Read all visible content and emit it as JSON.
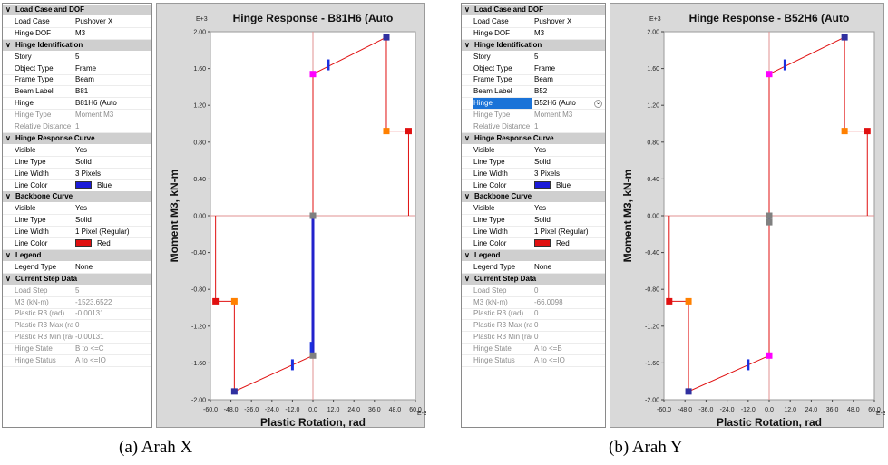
{
  "left_panel": {
    "properties": [
      {
        "type": "section",
        "label": "Load Case and DOF"
      },
      {
        "type": "item",
        "key": "Load Case",
        "value": "Pushover X"
      },
      {
        "type": "item",
        "key": "Hinge DOF",
        "value": "M3"
      },
      {
        "type": "section",
        "label": "Hinge Identification"
      },
      {
        "type": "item",
        "key": "Story",
        "value": "5"
      },
      {
        "type": "item",
        "key": "Object Type",
        "value": "Frame"
      },
      {
        "type": "item",
        "key": "Frame Type",
        "value": "Beam"
      },
      {
        "type": "item",
        "key": "Beam Label",
        "value": "B81"
      },
      {
        "type": "item",
        "key": "Hinge",
        "value": "B81H6 (Auto"
      },
      {
        "type": "item",
        "key": "Hinge Type",
        "value": "Moment M3",
        "grey": true
      },
      {
        "type": "item",
        "key": "Relative Distance",
        "value": "1",
        "grey": true
      },
      {
        "type": "section",
        "label": "Hinge Response Curve"
      },
      {
        "type": "item",
        "key": "Visible",
        "value": "Yes"
      },
      {
        "type": "item",
        "key": "Line Type",
        "value": "Solid"
      },
      {
        "type": "item",
        "key": "Line Width",
        "value": "3 Pixels"
      },
      {
        "type": "item",
        "key": "Line Color",
        "value": "Blue",
        "swatch": "#1b1bd8"
      },
      {
        "type": "section",
        "label": "Backbone Curve"
      },
      {
        "type": "item",
        "key": "Visible",
        "value": "Yes"
      },
      {
        "type": "item",
        "key": "Line Type",
        "value": "Solid"
      },
      {
        "type": "item",
        "key": "Line Width",
        "value": "1 Pixel (Regular)"
      },
      {
        "type": "item",
        "key": "Line Color",
        "value": "Red",
        "swatch": "#e01010"
      },
      {
        "type": "section",
        "label": "Legend"
      },
      {
        "type": "item",
        "key": "Legend Type",
        "value": "None"
      },
      {
        "type": "section",
        "label": "Current Step Data"
      },
      {
        "type": "item",
        "key": "Load Step",
        "value": "5",
        "grey": true
      },
      {
        "type": "item",
        "key": "M3 (kN-m)",
        "value": "-1523.6522",
        "grey": true
      },
      {
        "type": "item",
        "key": "Plastic R3 (rad)",
        "value": "-0.00131",
        "grey": true
      },
      {
        "type": "item",
        "key": "Plastic R3 Max (rac",
        "value": "0",
        "grey": true
      },
      {
        "type": "item",
        "key": "Plastic R3 Min (rad",
        "value": "-0.00131",
        "grey": true
      },
      {
        "type": "item",
        "key": "Hinge State",
        "value": "B to <=C",
        "grey": true
      },
      {
        "type": "item",
        "key": "Hinge Status",
        "value": "A to <=IO",
        "grey": true
      }
    ],
    "chart_title": "Hinge Response - B81H6 (Auto",
    "caption": "(a)  Arah X"
  },
  "right_panel": {
    "properties": [
      {
        "type": "section",
        "label": "Load Case and DOF"
      },
      {
        "type": "item",
        "key": "Load Case",
        "value": "Pushover X"
      },
      {
        "type": "item",
        "key": "Hinge DOF",
        "value": "M3"
      },
      {
        "type": "section",
        "label": "Hinge Identification"
      },
      {
        "type": "item",
        "key": "Story",
        "value": "5"
      },
      {
        "type": "item",
        "key": "Object Type",
        "value": "Frame"
      },
      {
        "type": "item",
        "key": "Frame Type",
        "value": "Beam"
      },
      {
        "type": "item",
        "key": "Beam Label",
        "value": "B52"
      },
      {
        "type": "item",
        "key": "Hinge",
        "value": "B52H6 (Auto",
        "selected": true,
        "dropdown": true
      },
      {
        "type": "item",
        "key": "Hinge Type",
        "value": "Moment M3",
        "grey": true
      },
      {
        "type": "item",
        "key": "Relative Distance",
        "value": "1",
        "grey": true
      },
      {
        "type": "section",
        "label": "Hinge Response Curve"
      },
      {
        "type": "item",
        "key": "Visible",
        "value": "Yes"
      },
      {
        "type": "item",
        "key": "Line Type",
        "value": "Solid"
      },
      {
        "type": "item",
        "key": "Line Width",
        "value": "3 Pixels"
      },
      {
        "type": "item",
        "key": "Line Color",
        "value": "Blue",
        "swatch": "#1b1bd8"
      },
      {
        "type": "section",
        "label": "Backbone Curve"
      },
      {
        "type": "item",
        "key": "Visible",
        "value": "Yes"
      },
      {
        "type": "item",
        "key": "Line Type",
        "value": "Solid"
      },
      {
        "type": "item",
        "key": "Line Width",
        "value": "1 Pixel (Regular)"
      },
      {
        "type": "item",
        "key": "Line Color",
        "value": "Red",
        "swatch": "#e01010"
      },
      {
        "type": "section",
        "label": "Legend"
      },
      {
        "type": "item",
        "key": "Legend Type",
        "value": "None"
      },
      {
        "type": "section",
        "label": "Current Step Data"
      },
      {
        "type": "item",
        "key": "Load Step",
        "value": "0",
        "grey": true
      },
      {
        "type": "item",
        "key": "M3 (kN-m)",
        "value": "-66.0098",
        "grey": true
      },
      {
        "type": "item",
        "key": "Plastic R3 (rad)",
        "value": "0",
        "grey": true
      },
      {
        "type": "item",
        "key": "Plastic R3 Max (rac",
        "value": "0",
        "grey": true
      },
      {
        "type": "item",
        "key": "Plastic R3 Min (rad",
        "value": "0",
        "grey": true
      },
      {
        "type": "item",
        "key": "Hinge State",
        "value": "A to <=B",
        "grey": true
      },
      {
        "type": "item",
        "key": "Hinge Status",
        "value": "A to <=IO",
        "grey": true
      }
    ],
    "chart_title": "Hinge Response - B52H6 (Auto",
    "caption": "(b) Arah Y"
  },
  "colors": {
    "backbone": "#e01010",
    "response": "#2222cc",
    "grid": "#e09090",
    "marker_B": "#ff00ff",
    "marker_C": "#3030a0",
    "marker_D": "#ff8000",
    "marker_E": "#e01010",
    "marker_origin": "#808080",
    "ticks_blue": "#1a30e0"
  },
  "chart_data": [
    {
      "type": "line",
      "title": "Hinge Response - B81H6 (Auto",
      "xlabel": "Plastic Rotation, rad",
      "ylabel": "Moment M3, kN-m",
      "x_multiplier": "E-3",
      "y_multiplier": "E+3",
      "xlim": [
        -60,
        60
      ],
      "ylim": [
        -2.0,
        2.0
      ],
      "x_ticks": [
        "-60.0",
        "-48.0",
        "-36.0",
        "-24.0",
        "-12.0",
        "0.0",
        "12.0",
        "24.0",
        "36.0",
        "48.0",
        "60.0"
      ],
      "y_ticks": [
        "2.00",
        "1.60",
        "1.20",
        "0.80",
        "0.40",
        "0.00",
        "-0.40",
        "-0.80",
        "-1.20",
        "-1.60",
        "-2.00"
      ],
      "series": [
        {
          "x": [
            -57,
            -57,
            -46,
            -46,
            0,
            0,
            0,
            43,
            43,
            56,
            56,
            56
          ],
          "y": [
            0,
            -0.93,
            -0.93,
            -1.91,
            -1.52,
            0,
            1.54,
            1.94,
            0.92,
            0.92,
            0.92,
            0
          ]
        }
      ],
      "response_x": [
        0,
        0
      ],
      "response_y": [
        0,
        -1.52
      ],
      "markers": [
        {
          "x": 0,
          "y": 0,
          "kind": "origin"
        },
        {
          "x": 0,
          "y": 1.54,
          "kind": "B"
        },
        {
          "x": 43,
          "y": 1.94,
          "kind": "C"
        },
        {
          "x": 43,
          "y": 0.92,
          "kind": "D"
        },
        {
          "x": 56,
          "y": 0.92,
          "kind": "E"
        },
        {
          "x": 0,
          "y": -1.52,
          "kind": "origin"
        },
        {
          "x": -46,
          "y": -1.91,
          "kind": "C"
        },
        {
          "x": -46,
          "y": -0.93,
          "kind": "D"
        },
        {
          "x": -57,
          "y": -0.93,
          "kind": "E"
        }
      ],
      "ticks": [
        {
          "x": 9,
          "y": 1.64
        },
        {
          "x": -12,
          "y": -1.62
        },
        {
          "x": -1,
          "y": -1.43
        }
      ]
    },
    {
      "type": "line",
      "title": "Hinge Response - B52H6 (Auto",
      "xlabel": "Plastic Rotation, rad",
      "ylabel": "Moment M3, kN-m",
      "x_multiplier": "E-3",
      "y_multiplier": "E+3",
      "xlim": [
        -60,
        60
      ],
      "ylim": [
        -2.0,
        2.0
      ],
      "x_ticks": [
        "-60.0",
        "-48.0",
        "-36.0",
        "-24.0",
        "-12.0",
        "0.0",
        "12.0",
        "24.0",
        "36.0",
        "48.0",
        "60.0"
      ],
      "y_ticks": [
        "2.00",
        "1.60",
        "1.20",
        "0.80",
        "0.40",
        "0.00",
        "-0.40",
        "-0.80",
        "-1.20",
        "-1.60",
        "-2.00"
      ],
      "series": [
        {
          "x": [
            -57,
            -57,
            -46,
            -46,
            0,
            0,
            0,
            43,
            43,
            56,
            56,
            56
          ],
          "y": [
            0,
            -0.93,
            -0.93,
            -1.91,
            -1.52,
            0,
            1.54,
            1.94,
            0.92,
            0.92,
            0.92,
            0
          ]
        }
      ],
      "response_x": [
        0,
        0
      ],
      "response_y": [
        0,
        -0.07
      ],
      "markers": [
        {
          "x": 0,
          "y": 0,
          "kind": "origin"
        },
        {
          "x": 0,
          "y": -0.07,
          "kind": "origin"
        },
        {
          "x": 0,
          "y": 1.54,
          "kind": "B"
        },
        {
          "x": 43,
          "y": 1.94,
          "kind": "C"
        },
        {
          "x": 43,
          "y": 0.92,
          "kind": "D"
        },
        {
          "x": 56,
          "y": 0.92,
          "kind": "E"
        },
        {
          "x": 0,
          "y": -1.52,
          "kind": "B"
        },
        {
          "x": -46,
          "y": -1.91,
          "kind": "C"
        },
        {
          "x": -46,
          "y": -0.93,
          "kind": "D"
        },
        {
          "x": -57,
          "y": -0.93,
          "kind": "E"
        }
      ],
      "ticks": [
        {
          "x": 9,
          "y": 1.64
        },
        {
          "x": -12,
          "y": -1.62
        }
      ]
    }
  ]
}
